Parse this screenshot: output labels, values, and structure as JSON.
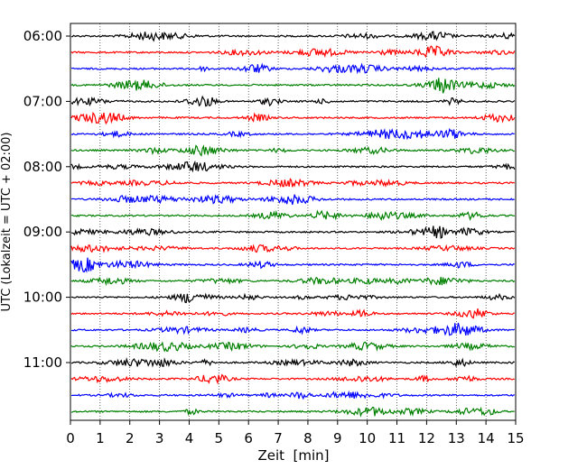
{
  "chart_data": {
    "type": "line",
    "title": "",
    "xlabel": "Zeit  [min]",
    "ylabel": "UTC (Lokalzeit = UTC + 02:00)",
    "xlim": [
      0,
      15
    ],
    "x_ticks": [
      "0",
      "1",
      "2",
      "3",
      "4",
      "5",
      "6",
      "7",
      "8",
      "9",
      "10",
      "11",
      "12",
      "13",
      "14",
      "15"
    ],
    "y_ticks": [
      "06:00",
      "07:00",
      "08:00",
      "09:00",
      "10:00",
      "11:00"
    ],
    "grid": "vertical dotted",
    "colors": [
      "#000000",
      "#ff0000",
      "#0000ff",
      "#008000"
    ],
    "traces_start": "06:00",
    "trace_interval_min": 15,
    "series": [
      {
        "start": "06:00"
      },
      {
        "start": "06:15"
      },
      {
        "start": "06:30"
      },
      {
        "start": "06:45"
      },
      {
        "start": "07:00"
      },
      {
        "start": "07:15"
      },
      {
        "start": "07:30"
      },
      {
        "start": "07:45"
      },
      {
        "start": "08:00"
      },
      {
        "start": "08:15"
      },
      {
        "start": "08:30"
      },
      {
        "start": "08:45"
      },
      {
        "start": "09:00"
      },
      {
        "start": "09:15"
      },
      {
        "start": "09:30"
      },
      {
        "start": "09:45"
      },
      {
        "start": "10:00"
      },
      {
        "start": "10:15"
      },
      {
        "start": "10:30"
      },
      {
        "start": "10:45"
      },
      {
        "start": "11:00"
      },
      {
        "start": "11:15"
      },
      {
        "start": "11:30"
      },
      {
        "start": "11:45"
      }
    ]
  }
}
